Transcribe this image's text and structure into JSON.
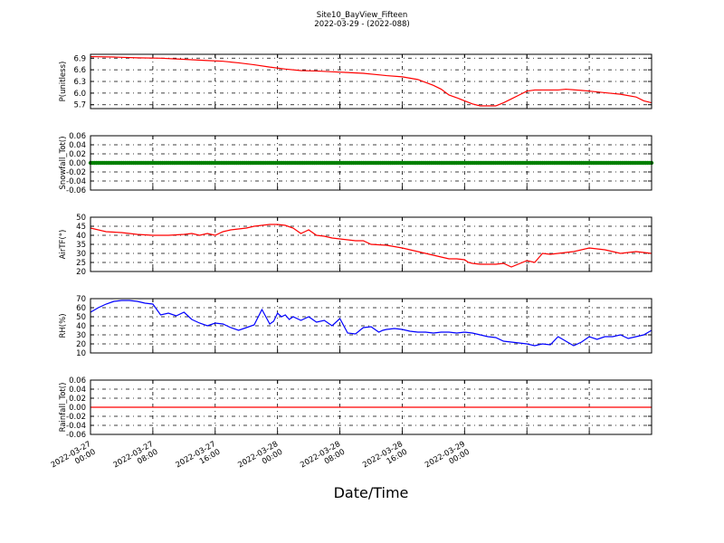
{
  "figure": {
    "title_line1": "Site10_BayView_Fifteen",
    "title_line2": "2022-03-29 - (2022-088)",
    "xlabel": "Date/Time",
    "x_ticks": [
      [
        "2022-03-27",
        "00:00"
      ],
      [
        "2022-03-27",
        "08:00"
      ],
      [
        "2022-03-27",
        "16:00"
      ],
      [
        "2022-03-28",
        "00:00"
      ],
      [
        "2022-03-28",
        "08:00"
      ],
      [
        "2022-03-28",
        "16:00"
      ],
      [
        "2022-03-29",
        "00:00"
      ]
    ]
  },
  "chart_data": [
    {
      "type": "line",
      "ylabel": "P(unitless)",
      "ylim": [
        5.6,
        7.0
      ],
      "yticks": [
        "6.9",
        "6.6",
        "6.3",
        "6.0",
        "5.7"
      ],
      "ytick_values": [
        6.9,
        6.6,
        6.3,
        6.0,
        5.7
      ],
      "grid": true,
      "color": "#ff0000",
      "x_hours": [
        0,
        3,
        6,
        9,
        11,
        13,
        15,
        17,
        19,
        21,
        23,
        25,
        27,
        29,
        31,
        33,
        35,
        37,
        38,
        40,
        42,
        44,
        45,
        46,
        47,
        48,
        49,
        50,
        52,
        53,
        54,
        55,
        56,
        57,
        58,
        60,
        61,
        63,
        64,
        66,
        68,
        70,
        71,
        72
      ],
      "values": [
        6.94,
        6.93,
        6.91,
        6.9,
        6.88,
        6.86,
        6.84,
        6.82,
        6.78,
        6.73,
        6.67,
        6.62,
        6.58,
        6.57,
        6.55,
        6.53,
        6.51,
        6.47,
        6.45,
        6.42,
        6.35,
        6.2,
        6.1,
        5.95,
        5.88,
        5.8,
        5.72,
        5.67,
        5.67,
        5.75,
        5.85,
        5.95,
        6.05,
        6.08,
        6.08,
        6.08,
        6.1,
        6.07,
        6.05,
        6.01,
        5.97,
        5.9,
        5.8,
        5.75
      ]
    },
    {
      "type": "scatter",
      "ylabel": "Snowfall_Tot()",
      "ylim": [
        -0.06,
        0.06
      ],
      "yticks": [
        "0.06",
        "0.04",
        "0.02",
        "0.00",
        "-0.02",
        "-0.04",
        "-0.06"
      ],
      "ytick_values": [
        0.06,
        0.04,
        0.02,
        0.0,
        -0.02,
        -0.04,
        -0.06
      ],
      "grid": true,
      "color": "#008000",
      "constant_value": 0.0
    },
    {
      "type": "line",
      "ylabel": "AirTF(°)",
      "ylim": [
        20,
        50
      ],
      "yticks": [
        "50",
        "45",
        "40",
        "35",
        "30",
        "25",
        "20"
      ],
      "ytick_values": [
        50,
        45,
        40,
        35,
        30,
        25,
        20
      ],
      "grid": true,
      "color": "#ff0000",
      "x_hours": [
        0,
        2,
        4,
        6,
        8,
        10,
        12,
        13,
        14,
        15,
        16,
        17,
        18,
        19,
        20,
        21,
        22,
        23,
        24,
        25,
        26,
        27,
        27.5,
        28,
        29,
        30,
        31,
        32,
        34,
        35,
        36,
        38,
        40,
        42,
        44,
        45,
        46,
        47,
        48,
        48.5,
        49,
        50,
        51,
        52,
        53,
        54,
        56,
        57,
        58,
        59,
        60,
        61,
        62,
        64,
        66,
        68,
        70,
        72
      ],
      "values": [
        44,
        42,
        41.5,
        40.5,
        40,
        40,
        40.5,
        41,
        40,
        41,
        40,
        42,
        43,
        43.5,
        44,
        45,
        45.5,
        46,
        46,
        45.5,
        44,
        41,
        42,
        43,
        40,
        39.5,
        38.5,
        38,
        37,
        37,
        35,
        34.5,
        33,
        31,
        29,
        28,
        27,
        27,
        26.5,
        25,
        24.5,
        24,
        24,
        24,
        24.5,
        22.5,
        26,
        25,
        30,
        29.5,
        30,
        30.5,
        31,
        33,
        32,
        30,
        31,
        30
      ]
    },
    {
      "type": "line",
      "ylabel": "RH(%)",
      "ylim": [
        10,
        70
      ],
      "yticks": [
        "70",
        "60",
        "50",
        "40",
        "30",
        "20",
        "10"
      ],
      "ytick_values": [
        70,
        60,
        50,
        40,
        30,
        20,
        10
      ],
      "grid": true,
      "color": "#0000ff",
      "x_hours": [
        0,
        1,
        2,
        3,
        4,
        5,
        6,
        7,
        8,
        9,
        10,
        11,
        12,
        13,
        14,
        15,
        16,
        17,
        18,
        19,
        20,
        21,
        22,
        23,
        23.5,
        24,
        24.5,
        25,
        25.5,
        26,
        27,
        28,
        29,
        30,
        31,
        32,
        33,
        34,
        35,
        36,
        37,
        37.5,
        38,
        39,
        40,
        41,
        42,
        43,
        44,
        45,
        46,
        47,
        48,
        49,
        50,
        51,
        52,
        53,
        54,
        55,
        56,
        57,
        58,
        59,
        60,
        61,
        62,
        63,
        64,
        65,
        66,
        67,
        68,
        69,
        70,
        71,
        72
      ],
      "values": [
        55,
        60,
        64,
        67,
        68,
        68,
        67,
        65,
        64,
        52,
        54,
        51,
        55,
        47,
        43,
        40,
        43,
        42,
        38,
        35,
        38,
        41,
        58,
        42,
        45,
        54,
        50,
        52,
        47,
        50,
        46,
        50,
        44,
        46,
        40,
        48,
        32,
        31,
        38,
        39,
        33,
        35,
        36,
        37,
        36,
        34,
        33,
        33,
        32,
        33,
        33,
        32,
        33,
        32,
        30,
        28,
        27,
        23,
        22,
        21,
        20,
        18,
        20,
        19,
        28,
        23,
        18,
        22,
        28,
        25,
        28,
        28,
        30,
        26,
        28,
        30,
        35
      ]
    },
    {
      "type": "line",
      "ylabel": "Rainfall_Tot()",
      "ylim": [
        -0.06,
        0.06
      ],
      "yticks": [
        "0.06",
        "0.04",
        "0.02",
        "0.00",
        "-0.02",
        "-0.04",
        "-0.06"
      ],
      "ytick_values": [
        0.06,
        0.04,
        0.02,
        0.0,
        -0.02,
        -0.04,
        -0.06
      ],
      "grid": true,
      "color": "#ff0000",
      "constant_value": 0.0
    }
  ]
}
